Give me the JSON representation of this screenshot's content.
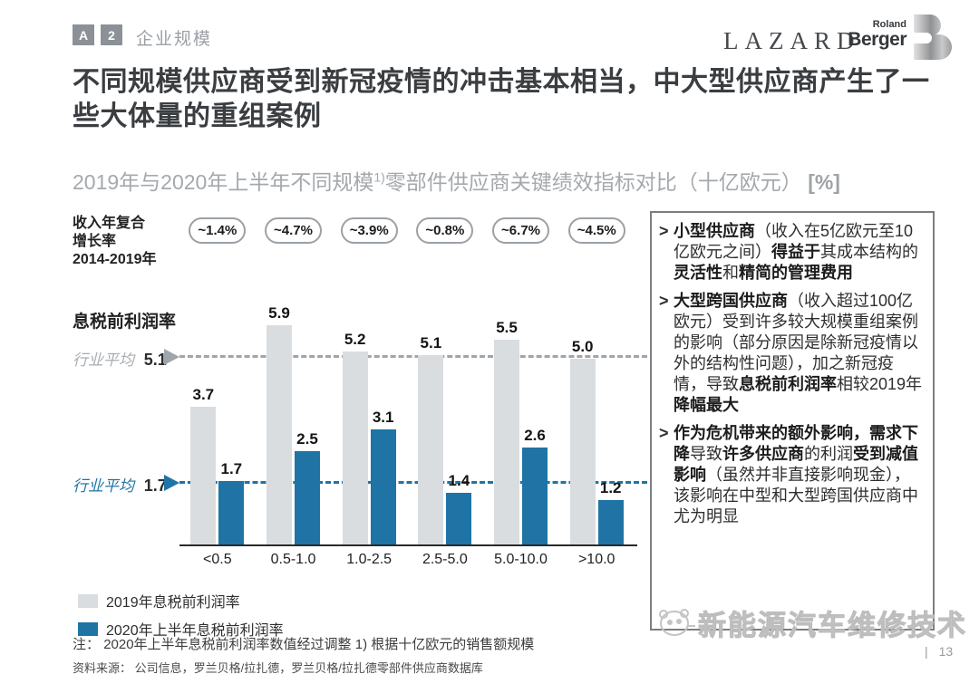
{
  "header": {
    "badge_a": "A",
    "badge_2": "2",
    "section_label": "企业规模",
    "lazard_logo": "LAZARD",
    "rb_logo_top": "Roland",
    "rb_logo_bottom": "Berger",
    "rb_logo_letter": "B"
  },
  "title": "不同规模供应商受到新冠疫情的冲击基本相当，中大型供应商产生了一些大体量的重组案例",
  "subtitle": {
    "pre": "2019年与2020年上半年不同规模",
    "sup": "1)",
    "post": "零部件供应商关键绩效指标对比（十亿欧元）",
    "unit": "[%]"
  },
  "chart_data": {
    "type": "bar",
    "title": "2019年与2020年上半年不同规模零部件供应商关键绩效指标对比（十亿欧元）[%]",
    "categories": [
      "<0.5",
      "0.5-1.0",
      "1.0-2.5",
      "2.5-5.0",
      "5.0-10.0",
      ">10.0"
    ],
    "series": [
      {
        "name": "2019年息税前利润率",
        "color": "#d9dde0",
        "values": [
          3.7,
          5.9,
          5.2,
          5.1,
          5.5,
          5.0
        ]
      },
      {
        "name": "2020年上半年息税前利润率",
        "color": "#1f74a5",
        "values": [
          1.7,
          2.5,
          3.1,
          1.4,
          2.6,
          1.2
        ]
      }
    ],
    "cagr_label_lines": [
      "收入年复合",
      "增长率",
      "2014-2019年"
    ],
    "cagr_badges": [
      "~1.4%",
      "~4.7%",
      "~3.9%",
      "~0.8%",
      "~6.7%",
      "~4.5%"
    ],
    "y_axis_label": "息税前利润率",
    "reference_lines": [
      {
        "label": "行业平均",
        "value": "5.1",
        "color": "#9fa6ab"
      },
      {
        "label": "行业平均",
        "value": "1.7",
        "color": "#1f74a5"
      }
    ],
    "ylim": [
      0,
      6.2
    ],
    "grid": false,
    "legend_position": "bottom-left"
  },
  "notes": {
    "note_label": "注：",
    "note_text": "2020年上半年息税前利润率数值经过调整  1) 根据十亿欧元的销售额规模",
    "source_label": "资料来源：",
    "source_text": "公司信息，罗兰贝格/拉扎德，罗兰贝格/拉扎德零部件供应商数据库"
  },
  "panel": {
    "bullets": [
      {
        "segments": [
          {
            "t": "小型供应商",
            "b": true
          },
          {
            "t": "（收入在5亿欧元至10亿欧元之间）",
            "b": false
          },
          {
            "t": "得益于",
            "b": true
          },
          {
            "t": "其成本结构的",
            "b": false
          },
          {
            "t": "灵活性",
            "b": true
          },
          {
            "t": "和",
            "b": false
          },
          {
            "t": "精简的管理费用",
            "b": true
          }
        ]
      },
      {
        "segments": [
          {
            "t": "大型跨国供应商",
            "b": true
          },
          {
            "t": "（收入超过100亿欧元）受到许多较大规模重组案例的影响（部分原因是除新冠疫情以外的结构性问题），加之新冠疫情，导致",
            "b": false
          },
          {
            "t": "息税前利润率",
            "b": true
          },
          {
            "t": "相较2019年",
            "b": false
          },
          {
            "t": "降幅最大",
            "b": true
          }
        ]
      },
      {
        "segments": [
          {
            "t": "作为危机带来的额外影响，需求下降",
            "b": true
          },
          {
            "t": "导致",
            "b": false
          },
          {
            "t": "许多供应商",
            "b": true
          },
          {
            "t": "的利润",
            "b": false
          },
          {
            "t": "受到减值影响",
            "b": true
          },
          {
            "t": "（虽然并非直接影响现金），该影响在中型和大型跨国供应商中尤为明显",
            "b": false
          }
        ]
      }
    ]
  },
  "watermark": {
    "text": "新能源汽车维修技术"
  },
  "footer": {
    "divider": "|",
    "page_number": "13"
  }
}
